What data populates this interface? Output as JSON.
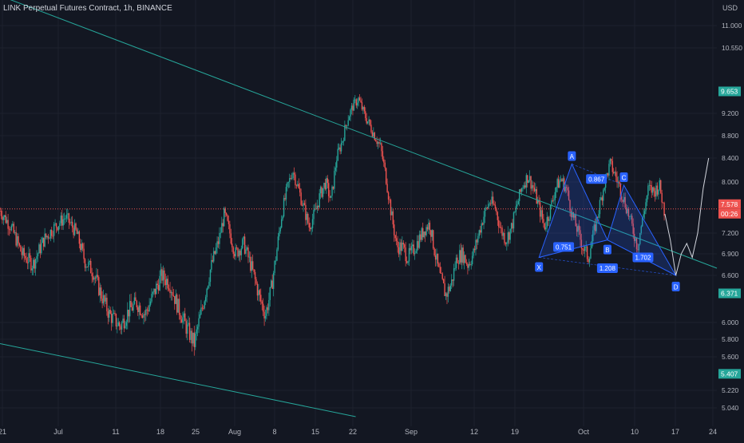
{
  "header": {
    "title": "LINK Perpetual Futures Contract, 1h, BINANCE",
    "currency": "USD"
  },
  "colors": {
    "background": "#131722",
    "grid": "#1e222d",
    "up": "#26a69a",
    "down": "#ef5350",
    "trendline": "#26a69a",
    "pattern_fill": "#2962ff",
    "pattern_stroke": "#2962ff",
    "label_bg": "#2962ff",
    "last_price_bg": "#ef5350",
    "axis_text": "#b2b5be"
  },
  "chart_data": {
    "type": "candlestick",
    "title": "LINK Perpetual Futures Contract, 1h, BINANCE",
    "ylim": [
      4.9,
      11.35
    ],
    "y_ticks": [
      "11.000",
      "10.550",
      "9.200",
      "8.800",
      "8.400",
      "8.000",
      "7.200",
      "6.900",
      "6.600",
      "6.000",
      "5.800",
      "5.600",
      "5.220",
      "5.040"
    ],
    "y_tick_values": [
      11.0,
      10.55,
      9.2,
      8.8,
      8.4,
      8.0,
      7.2,
      6.9,
      6.6,
      6.0,
      5.8,
      5.6,
      5.22,
      5.04
    ],
    "x_ticks": [
      "21",
      "Jul",
      "11",
      "18",
      "25",
      "Aug",
      "8",
      "15",
      "22",
      "Sep",
      "12",
      "19",
      "Oct",
      "10",
      "17",
      "24"
    ],
    "price_path": [
      [
        0,
        7.55
      ],
      [
        4,
        7.3
      ],
      [
        8,
        6.9
      ],
      [
        12,
        6.75
      ],
      [
        16,
        7.1
      ],
      [
        20,
        7.3
      ],
      [
        24,
        7.45
      ],
      [
        28,
        7.2
      ],
      [
        31,
        6.8
      ],
      [
        34,
        6.65
      ],
      [
        37,
        6.35
      ],
      [
        40,
        6.1
      ],
      [
        44,
        5.95
      ],
      [
        47,
        6.15
      ],
      [
        50,
        6.25
      ],
      [
        53,
        6.1
      ],
      [
        56,
        6.35
      ],
      [
        59,
        6.6
      ],
      [
        62,
        6.5
      ],
      [
        65,
        6.2
      ],
      [
        68,
        5.95
      ],
      [
        71,
        5.75
      ],
      [
        74,
        6.2
      ],
      [
        77,
        6.7
      ],
      [
        80,
        7.1
      ],
      [
        82,
        7.5
      ],
      [
        84,
        7.2
      ],
      [
        86,
        6.9
      ],
      [
        89,
        7.05
      ],
      [
        92,
        6.7
      ],
      [
        95,
        6.3
      ],
      [
        97,
        6.1
      ],
      [
        99,
        6.4
      ],
      [
        101,
        6.9
      ],
      [
        103,
        7.5
      ],
      [
        105,
        7.9
      ],
      [
        107,
        8.2
      ],
      [
        109,
        7.9
      ],
      [
        111,
        7.6
      ],
      [
        113,
        7.3
      ],
      [
        115,
        7.5
      ],
      [
        117,
        7.8
      ],
      [
        119,
        8.0
      ],
      [
        121,
        7.7
      ],
      [
        123,
        8.4
      ],
      [
        125,
        8.7
      ],
      [
        127,
        9.1
      ],
      [
        129,
        9.35
      ],
      [
        131,
        9.5
      ],
      [
        133,
        9.2
      ],
      [
        135,
        9.0
      ],
      [
        137,
        8.8
      ],
      [
        139,
        8.6
      ],
      [
        141,
        8.1
      ],
      [
        143,
        7.5
      ],
      [
        145,
        7.0
      ],
      [
        147,
        7.0
      ],
      [
        149,
        6.85
      ],
      [
        151,
        6.95
      ],
      [
        153,
        7.1
      ],
      [
        155,
        7.25
      ],
      [
        157,
        7.35
      ],
      [
        159,
        6.9
      ],
      [
        161,
        6.55
      ],
      [
        163,
        6.35
      ],
      [
        165,
        6.5
      ],
      [
        167,
        6.85
      ],
      [
        169,
        6.9
      ],
      [
        171,
        6.75
      ],
      [
        173,
        6.9
      ],
      [
        175,
        7.2
      ],
      [
        177,
        7.5
      ],
      [
        179,
        7.7
      ],
      [
        181,
        7.6
      ],
      [
        183,
        7.25
      ],
      [
        185,
        7.1
      ],
      [
        187,
        7.3
      ],
      [
        189,
        7.65
      ],
      [
        191,
        7.95
      ],
      [
        193,
        8.1
      ],
      [
        195,
        7.9
      ],
      [
        197,
        7.6
      ],
      [
        199,
        7.3
      ],
      [
        201,
        7.55
      ],
      [
        203,
        7.9
      ],
      [
        205,
        8.05
      ],
      [
        207,
        7.9
      ],
      [
        209,
        7.5
      ],
      [
        211,
        7.25
      ],
      [
        213,
        7.0
      ],
      [
        215,
        6.85
      ],
      [
        217,
        7.2
      ],
      [
        219,
        7.6
      ],
      [
        221,
        8.0
      ],
      [
        223,
        8.3
      ],
      [
        225,
        8.1
      ],
      [
        227,
        7.85
      ],
      [
        229,
        7.6
      ],
      [
        231,
        7.3
      ],
      [
        233,
        7.0
      ],
      [
        235,
        7.45
      ],
      [
        237,
        7.9
      ],
      [
        239,
        7.85
      ],
      [
        241,
        7.95
      ],
      [
        243,
        7.5
      ]
    ],
    "series": [
      {
        "name": "",
        "kind": "projection",
        "points": [
          [
            243,
            7.5
          ],
          [
            245,
            7.1
          ],
          [
            247,
            6.6
          ],
          [
            249,
            6.9
          ],
          [
            251,
            7.05
          ],
          [
            253,
            6.85
          ],
          [
            255,
            7.2
          ],
          [
            257,
            7.9
          ],
          [
            259,
            8.4
          ]
        ]
      }
    ],
    "trendlines": [
      {
        "from": [
          0,
          11.6
        ],
        "to": [
          262,
          6.7
        ]
      },
      {
        "from": [
          0,
          5.75
        ],
        "to": [
          130,
          4.95
        ]
      }
    ],
    "harmonic_pattern": {
      "points": {
        "X": [
          197,
          6.85
        ],
        "A": [
          209,
          8.3
        ],
        "B": [
          222,
          7.1
        ],
        "C": [
          228,
          7.95
        ],
        "D": [
          247,
          6.6
        ]
      },
      "labels": [
        "X",
        "A",
        "B",
        "C",
        "D"
      ],
      "ratios": [
        {
          "text": "0.751",
          "at": [
            206,
            7.0
          ]
        },
        {
          "text": "0.867",
          "at": [
            218,
            8.05
          ]
        },
        {
          "text": "1.208",
          "at": [
            222,
            6.7
          ]
        },
        {
          "text": "1.702",
          "at": [
            235,
            6.85
          ]
        }
      ]
    },
    "horizontal_lines": [
      {
        "value": 7.578,
        "style": "dotted"
      }
    ],
    "price_labels": [
      {
        "text": "9.653",
        "value": 9.653,
        "kind": "tag"
      },
      {
        "text": "7.578",
        "value": 7.578,
        "kind": "last"
      },
      {
        "text": "00:26",
        "value": 7.578,
        "kind": "countdown"
      },
      {
        "text": "6.371",
        "value": 6.371,
        "kind": "tag"
      },
      {
        "text": "5.407",
        "value": 5.407,
        "kind": "tag"
      }
    ]
  }
}
